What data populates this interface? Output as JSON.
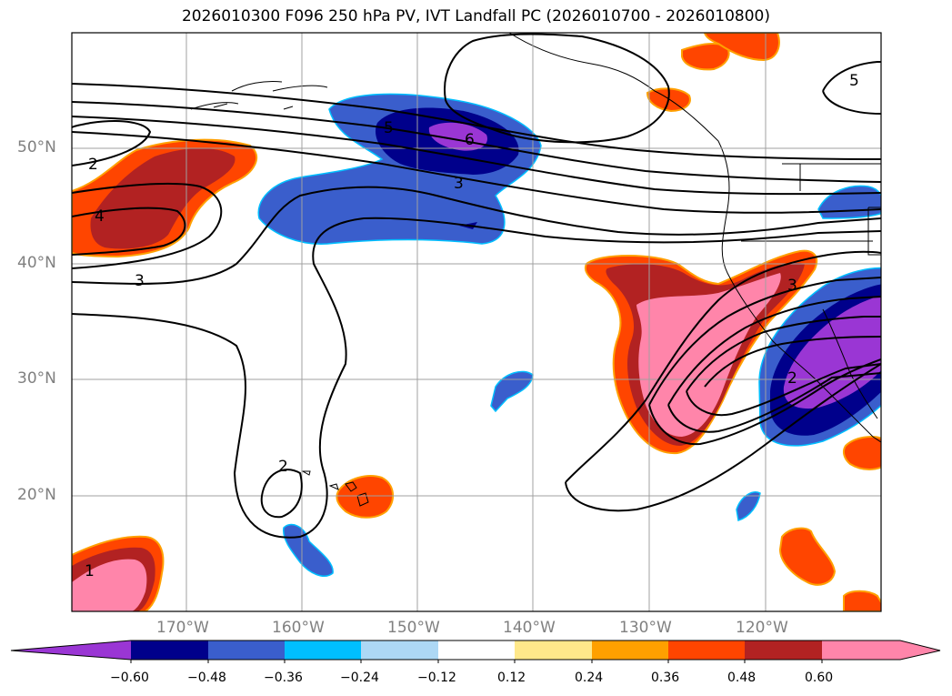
{
  "title": "2026010300 F096 250 hPa PV, IVT Landfall PC (2026010700 - 2026010800)",
  "colors": {
    "purple": "#9a36d4",
    "navy": "#00008b",
    "royal": "#3a5ecc",
    "deepsky": "#00bfff",
    "lightblue": "#add8f5",
    "white": "#ffffff",
    "khaki": "#ffe88a",
    "orange": "#ffa000",
    "orangered": "#ff4500",
    "firebrick": "#b22222",
    "pink": "#ff85aa"
  },
  "axes": {
    "lat_labels": [
      "50°N",
      "40°N",
      "30°N",
      "20°N"
    ],
    "lon_labels": [
      "170°W",
      "160°W",
      "150°W",
      "140°W",
      "130°W",
      "120°W"
    ]
  },
  "contour_labels": [
    "2",
    "4",
    "3",
    "5",
    "6",
    "3",
    "3",
    "2",
    "2",
    "5",
    "1"
  ],
  "colorbar": {
    "ticks": [
      "−0.60",
      "−0.48",
      "−0.36",
      "−0.24",
      "−0.12",
      "0.12",
      "0.24",
      "0.36",
      "0.48",
      "0.60"
    ]
  }
}
